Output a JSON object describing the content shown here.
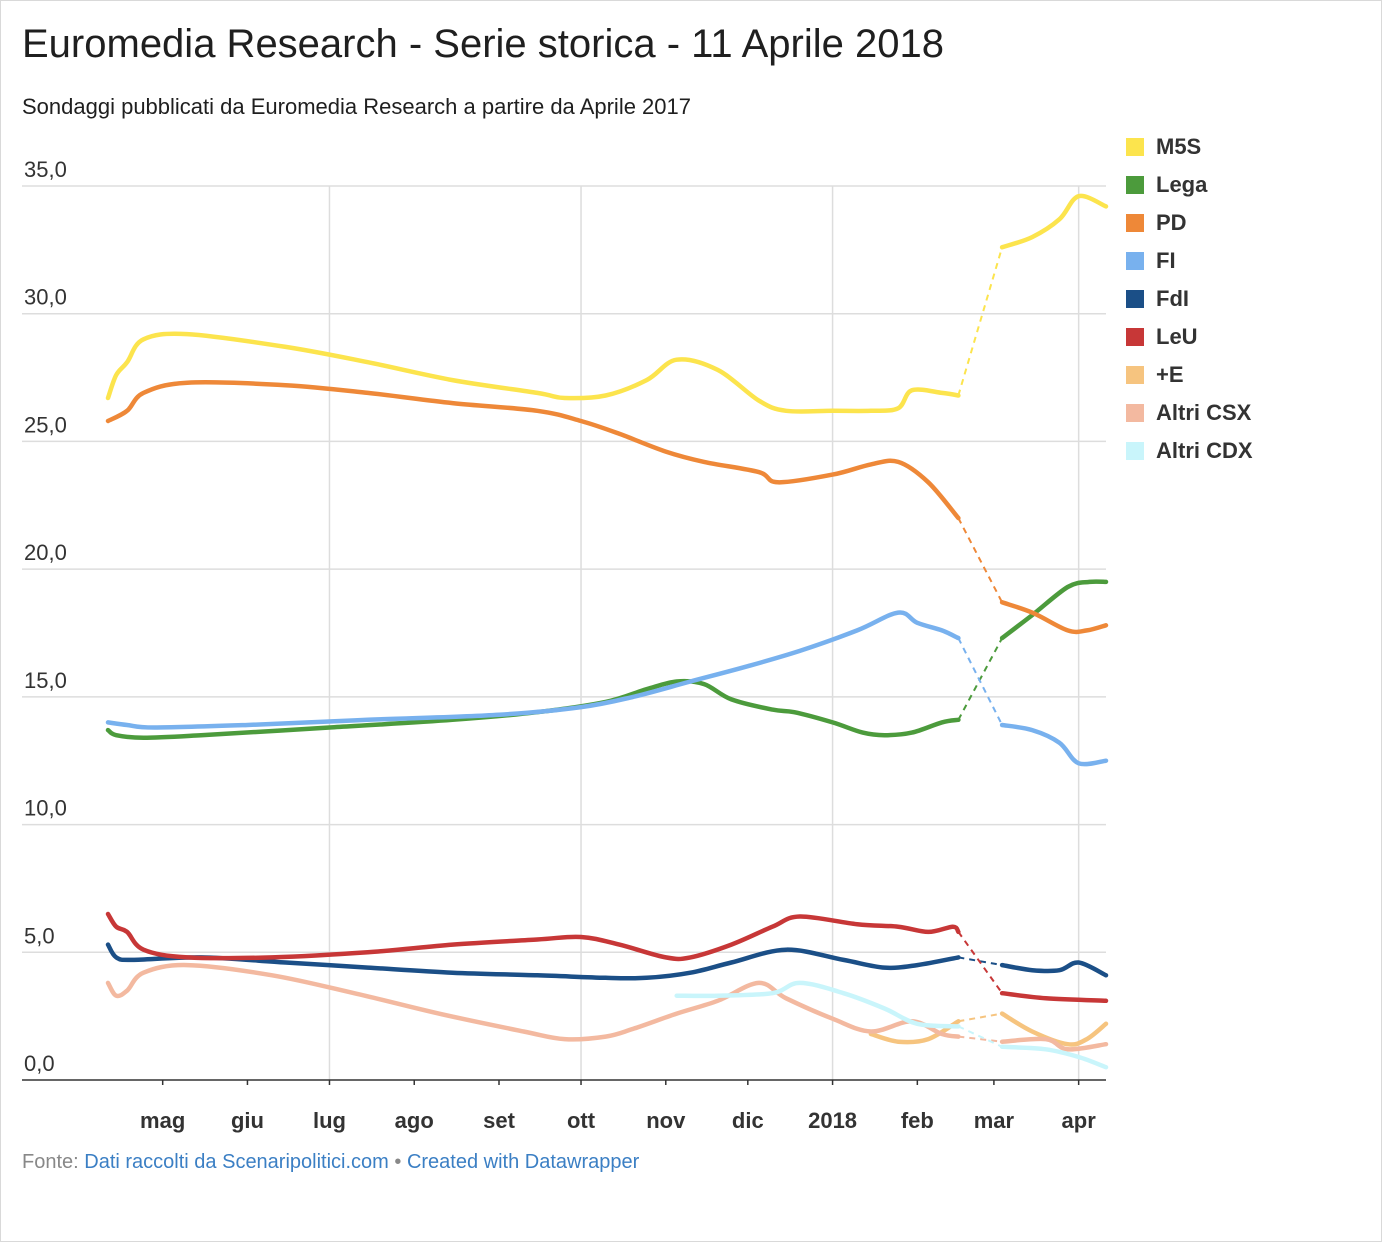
{
  "title": "Euromedia Research - Serie storica - 11 Aprile 2018",
  "subtitle": "Sondaggi pubblicati da Euromedia Research a partire da Aprile 2017",
  "footer": {
    "prefix": "Fonte: ",
    "source": "Dati raccolti da Scenaripolitici.com",
    "separator": " • ",
    "credit": "Created with Datawrapper"
  },
  "chart_data": {
    "type": "line",
    "ylim": [
      0,
      35
    ],
    "grid": true,
    "legend_position": "right",
    "y_ticks": [
      {
        "v": 0,
        "label": "0,0"
      },
      {
        "v": 5,
        "label": "5,0"
      },
      {
        "v": 10,
        "label": "10,0"
      },
      {
        "v": 15,
        "label": "15,0"
      },
      {
        "v": 20,
        "label": "20,0"
      },
      {
        "v": 25,
        "label": "25,0"
      },
      {
        "v": 30,
        "label": "30,0"
      },
      {
        "v": 35,
        "label": "35,0"
      }
    ],
    "x_range": [
      "2017-04-11",
      "2018-04-11"
    ],
    "x_ticks": [
      {
        "date": "2017-05-01",
        "label": "mag"
      },
      {
        "date": "2017-06-01",
        "label": "giu"
      },
      {
        "date": "2017-07-01",
        "label": "lug"
      },
      {
        "date": "2017-08-01",
        "label": "ago"
      },
      {
        "date": "2017-09-01",
        "label": "set"
      },
      {
        "date": "2017-10-01",
        "label": "ott"
      },
      {
        "date": "2017-11-01",
        "label": "nov"
      },
      {
        "date": "2017-12-01",
        "label": "dic"
      },
      {
        "date": "2018-01-01",
        "label": "2018"
      },
      {
        "date": "2018-02-01",
        "label": "feb"
      },
      {
        "date": "2018-03-01",
        "label": "mar"
      },
      {
        "date": "2018-04-01",
        "label": "apr"
      }
    ],
    "x_gridlines": [
      "2017-07-01",
      "2017-10-01",
      "2018-01-01",
      "2018-04-01"
    ],
    "gap": [
      "2018-02-16",
      "2018-03-04"
    ],
    "series": [
      {
        "name": "M5S",
        "color": "#fce44d",
        "points": [
          [
            "2017-04-11",
            26.7
          ],
          [
            "2017-04-14",
            27.6
          ],
          [
            "2017-04-18",
            28.1
          ],
          [
            "2017-04-24",
            29.0
          ],
          [
            "2017-05-10",
            29.2
          ],
          [
            "2017-06-15",
            28.7
          ],
          [
            "2017-07-15",
            28.1
          ],
          [
            "2017-08-15",
            27.4
          ],
          [
            "2017-09-15",
            26.9
          ],
          [
            "2017-09-25",
            26.7
          ],
          [
            "2017-10-10",
            26.8
          ],
          [
            "2017-10-25",
            27.4
          ],
          [
            "2017-11-05",
            28.2
          ],
          [
            "2017-11-20",
            27.8
          ],
          [
            "2017-12-05",
            26.6
          ],
          [
            "2017-12-15",
            26.2
          ],
          [
            "2018-01-01",
            26.2
          ],
          [
            "2018-01-15",
            26.2
          ],
          [
            "2018-01-25",
            26.3
          ],
          [
            "2018-01-30",
            27.0
          ],
          [
            "2018-02-10",
            26.9
          ],
          [
            "2018-02-16",
            26.8
          ],
          [
            "2018-03-04",
            32.6
          ],
          [
            "2018-03-15",
            33.0
          ],
          [
            "2018-03-25",
            33.7
          ],
          [
            "2018-04-01",
            34.6
          ],
          [
            "2018-04-11",
            34.2
          ]
        ]
      },
      {
        "name": "Lega",
        "color": "#4c9b3c",
        "points": [
          [
            "2017-04-11",
            13.7
          ],
          [
            "2017-04-14",
            13.5
          ],
          [
            "2017-04-24",
            13.4
          ],
          [
            "2017-05-15",
            13.5
          ],
          [
            "2017-07-01",
            13.8
          ],
          [
            "2017-08-15",
            14.1
          ],
          [
            "2017-09-15",
            14.4
          ],
          [
            "2017-10-10",
            14.8
          ],
          [
            "2017-10-25",
            15.3
          ],
          [
            "2017-11-05",
            15.6
          ],
          [
            "2017-11-15",
            15.5
          ],
          [
            "2017-11-25",
            14.9
          ],
          [
            "2017-12-10",
            14.5
          ],
          [
            "2017-12-18",
            14.4
          ],
          [
            "2018-01-01",
            14.0
          ],
          [
            "2018-01-12",
            13.6
          ],
          [
            "2018-01-20",
            13.5
          ],
          [
            "2018-01-30",
            13.6
          ],
          [
            "2018-02-10",
            14.0
          ],
          [
            "2018-02-16",
            14.1
          ],
          [
            "2018-03-04",
            17.3
          ],
          [
            "2018-03-15",
            18.2
          ],
          [
            "2018-03-28",
            19.3
          ],
          [
            "2018-04-05",
            19.5
          ],
          [
            "2018-04-11",
            19.5
          ]
        ]
      },
      {
        "name": "PD",
        "color": "#ee8838",
        "points": [
          [
            "2017-04-11",
            25.8
          ],
          [
            "2017-04-18",
            26.2
          ],
          [
            "2017-04-24",
            26.9
          ],
          [
            "2017-05-10",
            27.3
          ],
          [
            "2017-06-15",
            27.2
          ],
          [
            "2017-07-15",
            26.9
          ],
          [
            "2017-08-15",
            26.5
          ],
          [
            "2017-09-15",
            26.2
          ],
          [
            "2017-10-01",
            25.8
          ],
          [
            "2017-10-15",
            25.3
          ],
          [
            "2017-11-01",
            24.6
          ],
          [
            "2017-11-15",
            24.2
          ],
          [
            "2017-12-05",
            23.8
          ],
          [
            "2017-12-12",
            23.4
          ],
          [
            "2018-01-01",
            23.7
          ],
          [
            "2018-01-15",
            24.1
          ],
          [
            "2018-01-25",
            24.2
          ],
          [
            "2018-02-05",
            23.4
          ],
          [
            "2018-02-16",
            22.0
          ],
          [
            "2018-03-04",
            18.7
          ],
          [
            "2018-03-15",
            18.3
          ],
          [
            "2018-03-28",
            17.6
          ],
          [
            "2018-04-04",
            17.6
          ],
          [
            "2018-04-11",
            17.8
          ]
        ]
      },
      {
        "name": "FI",
        "color": "#78b1ee",
        "points": [
          [
            "2017-04-11",
            14.0
          ],
          [
            "2017-04-18",
            13.9
          ],
          [
            "2017-04-28",
            13.8
          ],
          [
            "2017-06-01",
            13.9
          ],
          [
            "2017-07-15",
            14.1
          ],
          [
            "2017-09-01",
            14.3
          ],
          [
            "2017-10-01",
            14.6
          ],
          [
            "2017-10-20",
            15.0
          ],
          [
            "2017-11-10",
            15.6
          ],
          [
            "2017-12-01",
            16.2
          ],
          [
            "2017-12-20",
            16.8
          ],
          [
            "2018-01-10",
            17.6
          ],
          [
            "2018-01-25",
            18.3
          ],
          [
            "2018-02-01",
            17.9
          ],
          [
            "2018-02-10",
            17.6
          ],
          [
            "2018-02-16",
            17.3
          ],
          [
            "2018-03-04",
            13.9
          ],
          [
            "2018-03-15",
            13.7
          ],
          [
            "2018-03-25",
            13.2
          ],
          [
            "2018-04-01",
            12.4
          ],
          [
            "2018-04-11",
            12.5
          ]
        ]
      },
      {
        "name": "FdI",
        "color": "#1b4f87",
        "points": [
          [
            "2017-04-11",
            5.3
          ],
          [
            "2017-04-14",
            4.8
          ],
          [
            "2017-04-20",
            4.7
          ],
          [
            "2017-05-15",
            4.8
          ],
          [
            "2017-06-15",
            4.6
          ],
          [
            "2017-07-15",
            4.4
          ],
          [
            "2017-08-15",
            4.2
          ],
          [
            "2017-09-15",
            4.1
          ],
          [
            "2017-10-10",
            4.0
          ],
          [
            "2017-10-25",
            4.0
          ],
          [
            "2017-11-10",
            4.2
          ],
          [
            "2017-11-25",
            4.6
          ],
          [
            "2017-12-15",
            5.1
          ],
          [
            "2018-01-05",
            4.7
          ],
          [
            "2018-01-20",
            4.4
          ],
          [
            "2018-02-01",
            4.5
          ],
          [
            "2018-02-16",
            4.8
          ],
          [
            "2018-03-04",
            4.5
          ],
          [
            "2018-03-15",
            4.3
          ],
          [
            "2018-03-25",
            4.3
          ],
          [
            "2018-04-01",
            4.6
          ],
          [
            "2018-04-11",
            4.1
          ]
        ]
      },
      {
        "name": "LeU",
        "color": "#c73737",
        "points": [
          [
            "2017-04-11",
            6.5
          ],
          [
            "2017-04-14",
            6.0
          ],
          [
            "2017-04-18",
            5.8
          ],
          [
            "2017-04-24",
            5.1
          ],
          [
            "2017-05-10",
            4.8
          ],
          [
            "2017-06-10",
            4.8
          ],
          [
            "2017-07-15",
            5.0
          ],
          [
            "2017-08-15",
            5.3
          ],
          [
            "2017-09-15",
            5.5
          ],
          [
            "2017-10-01",
            5.6
          ],
          [
            "2017-10-15",
            5.3
          ],
          [
            "2017-11-01",
            4.8
          ],
          [
            "2017-11-10",
            4.8
          ],
          [
            "2017-11-25",
            5.3
          ],
          [
            "2017-12-10",
            6.0
          ],
          [
            "2017-12-20",
            6.4
          ],
          [
            "2018-01-10",
            6.1
          ],
          [
            "2018-01-25",
            6.0
          ],
          [
            "2018-02-05",
            5.8
          ],
          [
            "2018-02-14",
            6.0
          ],
          [
            "2018-02-16",
            5.8
          ],
          [
            "2018-03-04",
            3.4
          ],
          [
            "2018-03-20",
            3.2
          ],
          [
            "2018-04-11",
            3.1
          ]
        ]
      },
      {
        "name": "+E",
        "color": "#f6c47f",
        "points": [
          [
            "2018-01-15",
            1.8
          ],
          [
            "2018-01-25",
            1.5
          ],
          [
            "2018-02-05",
            1.6
          ],
          [
            "2018-02-16",
            2.3
          ],
          [
            "2018-03-04",
            2.6
          ],
          [
            "2018-03-15",
            1.9
          ],
          [
            "2018-03-28",
            1.4
          ],
          [
            "2018-04-04",
            1.6
          ],
          [
            "2018-04-11",
            2.2
          ]
        ]
      },
      {
        "name": "Altri CSX",
        "color": "#f3b9a0",
        "points": [
          [
            "2017-04-11",
            3.8
          ],
          [
            "2017-04-14",
            3.3
          ],
          [
            "2017-04-18",
            3.5
          ],
          [
            "2017-04-24",
            4.2
          ],
          [
            "2017-05-10",
            4.5
          ],
          [
            "2017-06-10",
            4.1
          ],
          [
            "2017-07-10",
            3.4
          ],
          [
            "2017-08-10",
            2.6
          ],
          [
            "2017-09-10",
            1.9
          ],
          [
            "2017-09-25",
            1.6
          ],
          [
            "2017-10-10",
            1.7
          ],
          [
            "2017-10-20",
            2.0
          ],
          [
            "2017-11-05",
            2.6
          ],
          [
            "2017-11-20",
            3.1
          ],
          [
            "2017-12-05",
            3.8
          ],
          [
            "2017-12-15",
            3.2
          ],
          [
            "2018-01-01",
            2.4
          ],
          [
            "2018-01-15",
            1.9
          ],
          [
            "2018-01-30",
            2.3
          ],
          [
            "2018-02-10",
            1.8
          ],
          [
            "2018-02-16",
            1.7
          ],
          [
            "2018-03-04",
            1.5
          ],
          [
            "2018-03-20",
            1.6
          ],
          [
            "2018-03-28",
            1.2
          ],
          [
            "2018-04-11",
            1.4
          ]
        ]
      },
      {
        "name": "Altri CDX",
        "color": "#c9f5fb",
        "points": [
          [
            "2017-11-05",
            3.3
          ],
          [
            "2017-11-20",
            3.3
          ],
          [
            "2017-12-10",
            3.4
          ],
          [
            "2017-12-20",
            3.8
          ],
          [
            "2018-01-05",
            3.4
          ],
          [
            "2018-01-20",
            2.8
          ],
          [
            "2018-02-01",
            2.2
          ],
          [
            "2018-02-16",
            2.1
          ],
          [
            "2018-03-04",
            1.3
          ],
          [
            "2018-03-20",
            1.2
          ],
          [
            "2018-04-01",
            0.9
          ],
          [
            "2018-04-11",
            0.5
          ]
        ]
      }
    ]
  }
}
